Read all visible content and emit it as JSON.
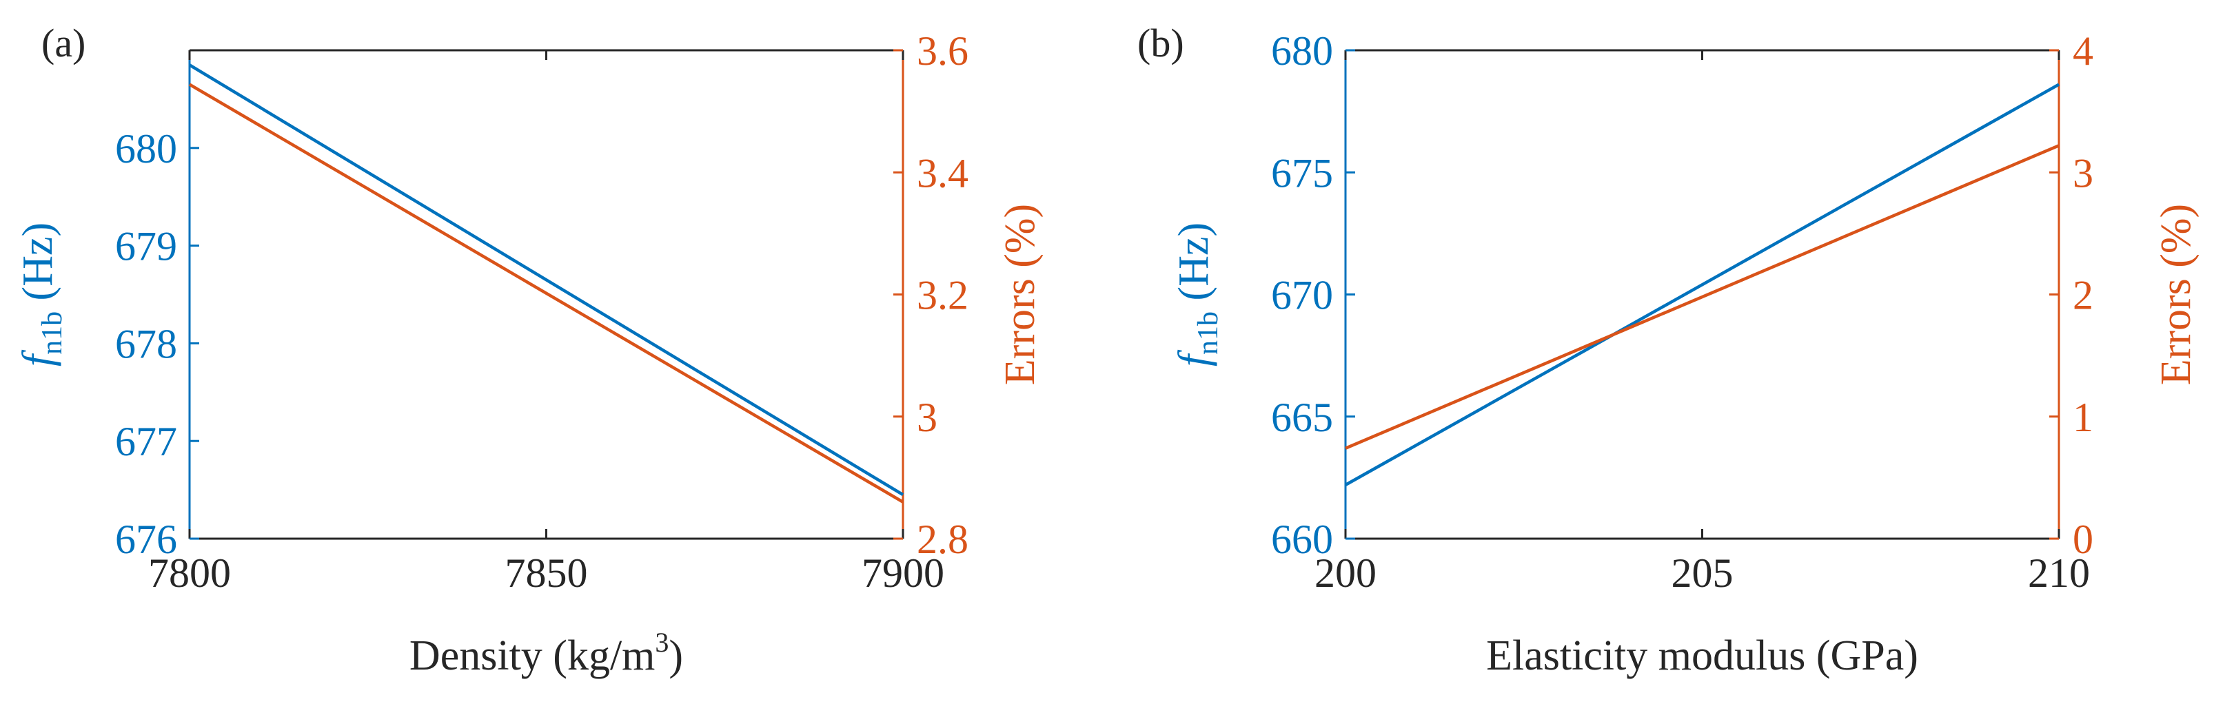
{
  "colors": {
    "left_axis": "#0072BD",
    "right_axis": "#D95319",
    "frame": "#262626",
    "text": "#262626"
  },
  "chart_data": [
    {
      "type": "line",
      "panel_label": "(a)",
      "xlabel": "Density (kg/m",
      "xlabel_sup": "3",
      "xlabel_suffix": ")",
      "ylabel_left": {
        "main": "f",
        "sub": "n1b",
        "unit": "(Hz)"
      },
      "ylabel_right": "Errors (%)",
      "xlim": [
        7800,
        7900
      ],
      "ylim_left": [
        676,
        681
      ],
      "ylim_right": [
        2.8,
        3.6
      ],
      "x_ticks": [
        "7800",
        "7850",
        "7900"
      ],
      "y_left_ticks": [
        "676",
        "677",
        "678",
        "679",
        "680"
      ],
      "y_right_ticks": [
        "2.8",
        "3",
        "3.2",
        "3.4",
        "3.6"
      ],
      "grid": false,
      "series": [
        {
          "axis": "left",
          "color": "#0072BD",
          "x": [
            7800,
            7900
          ],
          "y": [
            680.85,
            676.45
          ]
        },
        {
          "axis": "right",
          "color": "#D95319",
          "x": [
            7800,
            7900
          ],
          "y": [
            3.544,
            2.86
          ]
        }
      ]
    },
    {
      "type": "line",
      "panel_label": "(b)",
      "xlabel": "Elasticity modulus (GPa)",
      "xlabel_sup": "",
      "xlabel_suffix": "",
      "ylabel_left": {
        "main": "f",
        "sub": "n1b",
        "unit": "(Hz)"
      },
      "ylabel_right": "Errors (%)",
      "xlim": [
        200,
        210
      ],
      "ylim_left": [
        660,
        680
      ],
      "ylim_right": [
        0,
        4
      ],
      "x_ticks": [
        "200",
        "205",
        "210"
      ],
      "y_left_ticks": [
        "660",
        "665",
        "670",
        "675",
        "680"
      ],
      "y_right_ticks": [
        "0",
        "1",
        "2",
        "3",
        "4"
      ],
      "grid": false,
      "series": [
        {
          "axis": "left",
          "color": "#0072BD",
          "x": [
            200,
            210
          ],
          "y": [
            662.2,
            678.6
          ]
        },
        {
          "axis": "right",
          "color": "#D95319",
          "x": [
            200,
            210
          ],
          "y": [
            0.74,
            3.22
          ]
        }
      ]
    }
  ]
}
